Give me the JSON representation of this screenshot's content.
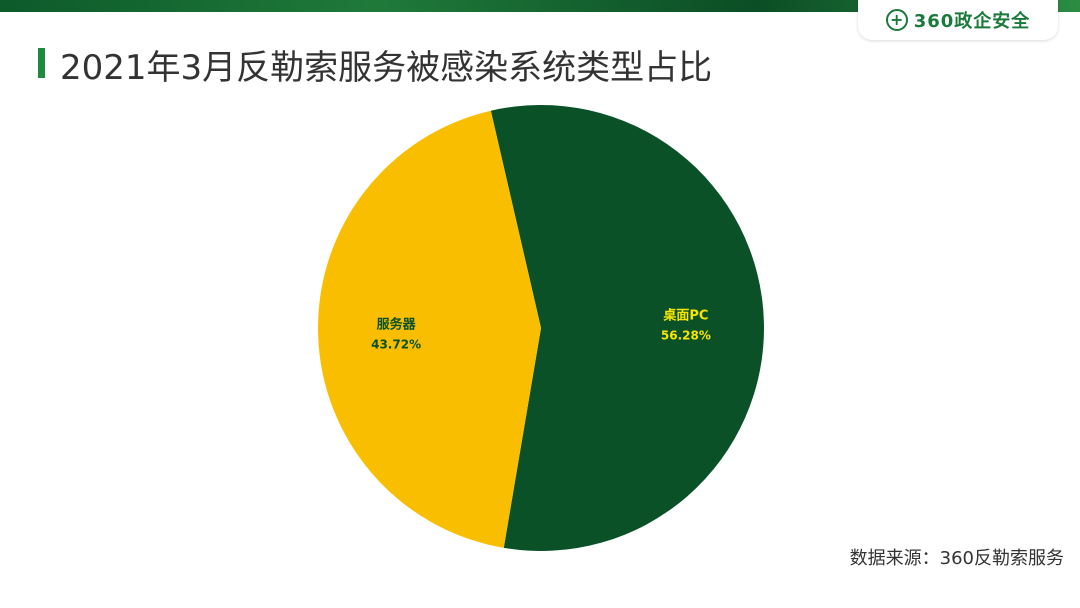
{
  "title": "2021年3月反勒索服务被感染系统类型占比",
  "logo": {
    "text": "360政企安全",
    "icon": "plus-circle-icon"
  },
  "source": "数据来源：360反勒索服务",
  "colors": {
    "brand": "#1e8a3e",
    "pc": "#0a5128",
    "server": "#f9be00",
    "pc_label": "#f9e500",
    "server_label": "#0a5128"
  },
  "chart_data": {
    "type": "pie",
    "title": "2021年3月反勒索服务被感染系统类型占比",
    "categories": [
      "桌面PC",
      "服务器"
    ],
    "values": [
      56.28,
      43.72
    ],
    "slices": [
      {
        "name": "桌面PC",
        "value": 56.28,
        "label": "56.28%"
      },
      {
        "name": "服务器",
        "value": 43.72,
        "label": "43.72%"
      }
    ],
    "legend": "none"
  }
}
